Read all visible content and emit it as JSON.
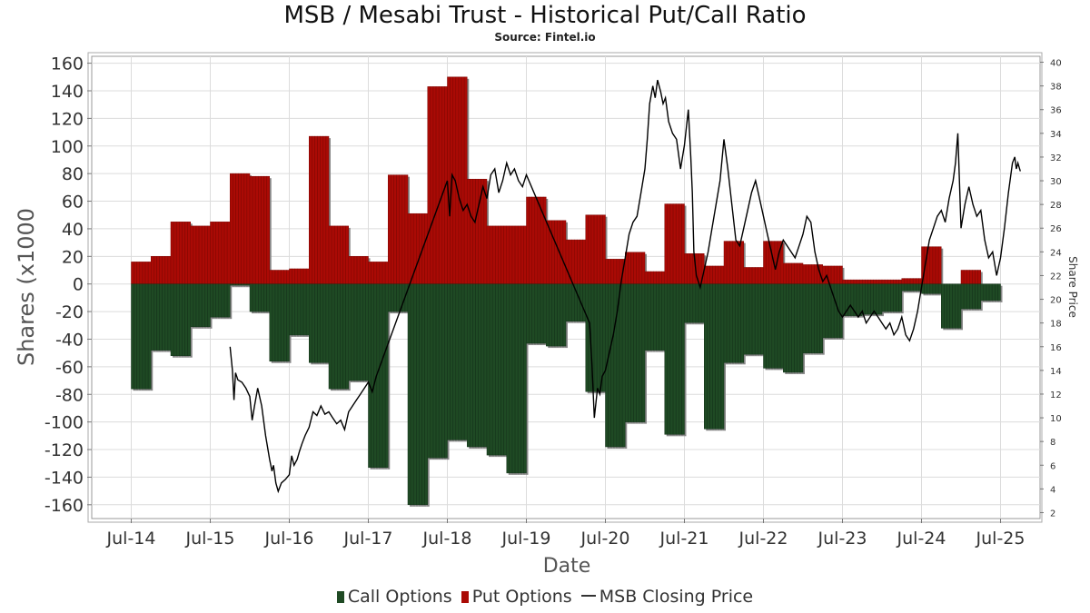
{
  "title": "MSB / Mesabi Trust - Historical Put/Call Ratio",
  "subtitle": "Source: Fintel.io",
  "chart_data": {
    "type": "bar",
    "title": "MSB / Mesabi Trust - Historical Put/Call Ratio",
    "subtitle": "Source: Fintel.io",
    "xlabel": "Date",
    "ylabel": "Shares (x1000",
    "y2label": "Share Price",
    "ylim": [
      -170,
      165
    ],
    "y2lim": [
      1.5,
      40.5
    ],
    "yticks": [
      160,
      140,
      120,
      100,
      80,
      60,
      40,
      20,
      0,
      -20,
      -40,
      -60,
      -80,
      -100,
      -120,
      -140,
      -160
    ],
    "y2ticks": [
      40,
      38,
      36,
      34,
      32,
      30,
      28,
      26,
      24,
      22,
      20,
      18,
      16,
      14,
      12,
      10,
      8,
      6,
      4,
      2
    ],
    "xlim": [
      2014.0,
      2026.0
    ],
    "xticks": [
      {
        "label": "Jul-14",
        "t": 2014.5
      },
      {
        "label": "Jul-15",
        "t": 2015.5
      },
      {
        "label": "Jul-16",
        "t": 2016.5
      },
      {
        "label": "Jul-17",
        "t": 2017.5
      },
      {
        "label": "Jul-18",
        "t": 2018.5
      },
      {
        "label": "Jul-19",
        "t": 2019.5
      },
      {
        "label": "Jul-20",
        "t": 2020.5
      },
      {
        "label": "Jul-21",
        "t": 2021.5
      },
      {
        "label": "Jul-22",
        "t": 2022.5
      },
      {
        "label": "Jul-23",
        "t": 2023.5
      },
      {
        "label": "Jul-24",
        "t": 2024.5
      },
      {
        "label": "Jul-25",
        "t": 2025.5
      }
    ],
    "grid": true,
    "legend_position": "bottom-center",
    "colors": {
      "call": "#1f4a24",
      "put": "#aa0a05",
      "price": "#000000",
      "shadow": "#888888",
      "grid": "#dcdcdc"
    },
    "series": [
      {
        "name": "Call Options",
        "type": "bar",
        "color": "#1f4a24"
      },
      {
        "name": "Put Options",
        "type": "bar",
        "color": "#aa0a05"
      },
      {
        "name": "MSB Closing Price",
        "type": "line",
        "color": "#000000"
      }
    ],
    "bars": [
      {
        "start": 2014.5,
        "end": 2014.75,
        "put": 16,
        "call": -76
      },
      {
        "start": 2014.75,
        "end": 2015.0,
        "put": 20,
        "call": -48
      },
      {
        "start": 2015.0,
        "end": 2015.25,
        "put": 45,
        "call": -52
      },
      {
        "start": 2015.25,
        "end": 2015.5,
        "put": 42,
        "call": -31
      },
      {
        "start": 2015.5,
        "end": 2015.75,
        "put": 45,
        "call": -24
      },
      {
        "start": 2015.75,
        "end": 2016.0,
        "put": 80,
        "call": -1
      },
      {
        "start": 2016.0,
        "end": 2016.25,
        "put": 78,
        "call": -20
      },
      {
        "start": 2016.25,
        "end": 2016.5,
        "put": 10,
        "call": -56
      },
      {
        "start": 2016.5,
        "end": 2016.75,
        "put": 11,
        "call": -37
      },
      {
        "start": 2016.75,
        "end": 2017.0,
        "put": 107,
        "call": -57
      },
      {
        "start": 2017.0,
        "end": 2017.25,
        "put": 42,
        "call": -76
      },
      {
        "start": 2017.25,
        "end": 2017.5,
        "put": 20,
        "call": -70
      },
      {
        "start": 2017.5,
        "end": 2017.75,
        "put": 16,
        "call": -133
      },
      {
        "start": 2017.75,
        "end": 2018.0,
        "put": 79,
        "call": -20
      },
      {
        "start": 2018.0,
        "end": 2018.25,
        "put": 51,
        "call": -160
      },
      {
        "start": 2018.25,
        "end": 2018.5,
        "put": 143,
        "call": -126
      },
      {
        "start": 2018.5,
        "end": 2018.75,
        "put": 150,
        "call": -113
      },
      {
        "start": 2018.75,
        "end": 2019.0,
        "put": 76,
        "call": -118
      },
      {
        "start": 2019.0,
        "end": 2019.25,
        "put": 42,
        "call": -124
      },
      {
        "start": 2019.25,
        "end": 2019.5,
        "put": 42,
        "call": -137
      },
      {
        "start": 2019.5,
        "end": 2019.75,
        "put": 63,
        "call": -43
      },
      {
        "start": 2019.75,
        "end": 2020.0,
        "put": 46,
        "call": -45
      },
      {
        "start": 2020.0,
        "end": 2020.25,
        "put": 32,
        "call": -27
      },
      {
        "start": 2020.25,
        "end": 2020.5,
        "put": 50,
        "call": -78
      },
      {
        "start": 2020.5,
        "end": 2020.75,
        "put": 18,
        "call": -118
      },
      {
        "start": 2020.75,
        "end": 2021.0,
        "put": 23,
        "call": -100
      },
      {
        "start": 2021.0,
        "end": 2021.25,
        "put": 9,
        "call": -48
      },
      {
        "start": 2021.25,
        "end": 2021.5,
        "put": 58,
        "call": -109
      },
      {
        "start": 2021.5,
        "end": 2021.75,
        "put": 22,
        "call": -28
      },
      {
        "start": 2021.75,
        "end": 2022.0,
        "put": 13,
        "call": -105
      },
      {
        "start": 2022.0,
        "end": 2022.25,
        "put": 31,
        "call": -57
      },
      {
        "start": 2022.25,
        "end": 2022.5,
        "put": 12,
        "call": -51
      },
      {
        "start": 2022.5,
        "end": 2022.75,
        "put": 31,
        "call": -61
      },
      {
        "start": 2022.75,
        "end": 2023.0,
        "put": 15,
        "call": -64
      },
      {
        "start": 2023.0,
        "end": 2023.25,
        "put": 14,
        "call": -50
      },
      {
        "start": 2023.25,
        "end": 2023.5,
        "put": 13,
        "call": -39
      },
      {
        "start": 2023.5,
        "end": 2023.75,
        "put": 3,
        "call": -23
      },
      {
        "start": 2023.75,
        "end": 2024.0,
        "put": 3,
        "call": -22
      },
      {
        "start": 2024.0,
        "end": 2024.25,
        "put": 3,
        "call": -20
      },
      {
        "start": 2024.25,
        "end": 2024.5,
        "put": 4,
        "call": -5
      },
      {
        "start": 2024.5,
        "end": 2024.75,
        "put": 27,
        "call": -7
      },
      {
        "start": 2024.75,
        "end": 2025.0,
        "put": 0,
        "call": -32
      },
      {
        "start": 2025.0,
        "end": 2025.25,
        "put": 10,
        "call": -18
      },
      {
        "start": 2025.25,
        "end": 2025.5,
        "put": 0,
        "call": -12
      }
    ],
    "price": [
      [
        2015.75,
        16.0
      ],
      [
        2015.78,
        14.0
      ],
      [
        2015.8,
        11.5
      ],
      [
        2015.82,
        13.8
      ],
      [
        2015.85,
        13.2
      ],
      [
        2015.9,
        13.0
      ],
      [
        2015.95,
        12.5
      ],
      [
        2016.0,
        11.8
      ],
      [
        2016.03,
        9.8
      ],
      [
        2016.06,
        11.0
      ],
      [
        2016.1,
        12.5
      ],
      [
        2016.15,
        11.0
      ],
      [
        2016.2,
        8.5
      ],
      [
        2016.25,
        6.5
      ],
      [
        2016.28,
        5.5
      ],
      [
        2016.3,
        6.0
      ],
      [
        2016.33,
        4.5
      ],
      [
        2016.36,
        3.8
      ],
      [
        2016.4,
        4.5
      ],
      [
        2016.45,
        4.8
      ],
      [
        2016.5,
        5.2
      ],
      [
        2016.53,
        6.8
      ],
      [
        2016.56,
        6.0
      ],
      [
        2016.6,
        6.5
      ],
      [
        2016.63,
        7.2
      ],
      [
        2016.66,
        7.8
      ],
      [
        2016.7,
        8.5
      ],
      [
        2016.75,
        9.2
      ],
      [
        2016.8,
        10.5
      ],
      [
        2016.85,
        10.2
      ],
      [
        2016.9,
        11.0
      ],
      [
        2016.95,
        10.3
      ],
      [
        2017.0,
        10.5
      ],
      [
        2017.05,
        10.0
      ],
      [
        2017.1,
        9.5
      ],
      [
        2017.15,
        9.8
      ],
      [
        2017.2,
        9.0
      ],
      [
        2017.25,
        10.5
      ],
      [
        2017.3,
        11.0
      ],
      [
        2017.35,
        11.5
      ],
      [
        2017.4,
        12.0
      ],
      [
        2017.45,
        12.5
      ],
      [
        2017.5,
        13.0
      ],
      [
        2017.55,
        12.2
      ],
      [
        2017.6,
        13.5
      ],
      [
        2018.5,
        30.0
      ],
      [
        2018.53,
        27.0
      ],
      [
        2018.56,
        30.5
      ],
      [
        2018.6,
        30.0
      ],
      [
        2018.65,
        28.5
      ],
      [
        2018.7,
        27.5
      ],
      [
        2018.75,
        28.0
      ],
      [
        2018.8,
        27.0
      ],
      [
        2018.85,
        26.5
      ],
      [
        2018.9,
        28.0
      ],
      [
        2018.95,
        29.5
      ],
      [
        2019.0,
        28.5
      ],
      [
        2019.05,
        30.5
      ],
      [
        2019.1,
        31.0
      ],
      [
        2019.15,
        29.0
      ],
      [
        2019.2,
        30.0
      ],
      [
        2019.25,
        31.5
      ],
      [
        2019.3,
        30.5
      ],
      [
        2019.35,
        31.0
      ],
      [
        2019.4,
        30.0
      ],
      [
        2019.45,
        29.5
      ],
      [
        2019.5,
        30.5
      ],
      [
        2020.3,
        18.0
      ],
      [
        2020.33,
        14.5
      ],
      [
        2020.36,
        10.0
      ],
      [
        2020.4,
        12.5
      ],
      [
        2020.43,
        12.0
      ],
      [
        2020.46,
        13.5
      ],
      [
        2020.5,
        14.0
      ],
      [
        2020.55,
        15.5
      ],
      [
        2020.6,
        17.0
      ],
      [
        2020.65,
        19.0
      ],
      [
        2020.7,
        21.5
      ],
      [
        2020.75,
        23.5
      ],
      [
        2020.8,
        25.5
      ],
      [
        2020.85,
        26.5
      ],
      [
        2020.9,
        27.0
      ],
      [
        2020.95,
        29.0
      ],
      [
        2021.0,
        31.0
      ],
      [
        2021.03,
        33.5
      ],
      [
        2021.06,
        36.5
      ],
      [
        2021.1,
        38.0
      ],
      [
        2021.13,
        37.0
      ],
      [
        2021.16,
        38.5
      ],
      [
        2021.2,
        37.5
      ],
      [
        2021.23,
        36.5
      ],
      [
        2021.26,
        37.0
      ],
      [
        2021.3,
        35.0
      ],
      [
        2021.35,
        34.0
      ],
      [
        2021.4,
        33.5
      ],
      [
        2021.45,
        31.0
      ],
      [
        2021.5,
        33.0
      ],
      [
        2021.55,
        36.0
      ],
      [
        2021.58,
        32.0
      ],
      [
        2021.6,
        29.0
      ],
      [
        2021.62,
        24.0
      ],
      [
        2021.65,
        22.0
      ],
      [
        2021.7,
        21.0
      ],
      [
        2021.75,
        22.5
      ],
      [
        2021.8,
        24.0
      ],
      [
        2021.85,
        26.0
      ],
      [
        2021.9,
        28.0
      ],
      [
        2021.95,
        30.0
      ],
      [
        2022.0,
        33.5
      ],
      [
        2022.05,
        31.0
      ],
      [
        2022.1,
        28.0
      ],
      [
        2022.15,
        25.0
      ],
      [
        2022.2,
        24.5
      ],
      [
        2022.25,
        26.0
      ],
      [
        2022.3,
        27.5
      ],
      [
        2022.35,
        29.0
      ],
      [
        2022.4,
        30.0
      ],
      [
        2022.45,
        28.5
      ],
      [
        2022.5,
        27.0
      ],
      [
        2022.55,
        25.5
      ],
      [
        2022.6,
        24.0
      ],
      [
        2022.65,
        22.5
      ],
      [
        2022.7,
        24.0
      ],
      [
        2022.75,
        25.0
      ],
      [
        2022.8,
        24.5
      ],
      [
        2022.85,
        24.0
      ],
      [
        2022.9,
        23.5
      ],
      [
        2022.95,
        24.5
      ],
      [
        2023.0,
        25.5
      ],
      [
        2023.05,
        27.0
      ],
      [
        2023.1,
        26.5
      ],
      [
        2023.15,
        24.0
      ],
      [
        2023.2,
        22.5
      ],
      [
        2023.25,
        21.5
      ],
      [
        2023.3,
        22.0
      ],
      [
        2023.35,
        21.0
      ],
      [
        2023.4,
        20.0
      ],
      [
        2023.45,
        19.0
      ],
      [
        2023.5,
        18.5
      ],
      [
        2023.55,
        19.0
      ],
      [
        2023.6,
        19.5
      ],
      [
        2023.65,
        19.0
      ],
      [
        2023.7,
        18.5
      ],
      [
        2023.75,
        19.0
      ],
      [
        2023.8,
        18.0
      ],
      [
        2023.85,
        18.5
      ],
      [
        2023.9,
        19.0
      ],
      [
        2023.95,
        18.5
      ],
      [
        2024.0,
        18.0
      ],
      [
        2024.05,
        17.5
      ],
      [
        2024.1,
        18.0
      ],
      [
        2024.15,
        17.0
      ],
      [
        2024.2,
        17.5
      ],
      [
        2024.25,
        18.5
      ],
      [
        2024.3,
        17.0
      ],
      [
        2024.35,
        16.5
      ],
      [
        2024.4,
        17.5
      ],
      [
        2024.45,
        19.0
      ],
      [
        2024.5,
        21.0
      ],
      [
        2024.55,
        23.0
      ],
      [
        2024.6,
        25.0
      ],
      [
        2024.65,
        26.0
      ],
      [
        2024.7,
        27.0
      ],
      [
        2024.75,
        27.5
      ],
      [
        2024.8,
        26.5
      ],
      [
        2024.85,
        28.5
      ],
      [
        2024.9,
        30.0
      ],
      [
        2024.93,
        31.5
      ],
      [
        2024.96,
        34.0
      ],
      [
        2025.0,
        26.0
      ],
      [
        2025.05,
        28.0
      ],
      [
        2025.1,
        29.5
      ],
      [
        2025.15,
        28.0
      ],
      [
        2025.2,
        27.0
      ],
      [
        2025.25,
        27.5
      ],
      [
        2025.3,
        25.0
      ],
      [
        2025.35,
        23.5
      ],
      [
        2025.4,
        24.0
      ],
      [
        2025.45,
        22.0
      ],
      [
        2025.5,
        23.5
      ],
      [
        2025.55,
        26.0
      ],
      [
        2025.6,
        29.0
      ],
      [
        2025.65,
        31.5
      ],
      [
        2025.68,
        32.0
      ],
      [
        2025.7,
        31.0
      ],
      [
        2025.72,
        31.5
      ],
      [
        2025.75,
        30.8
      ]
    ]
  }
}
